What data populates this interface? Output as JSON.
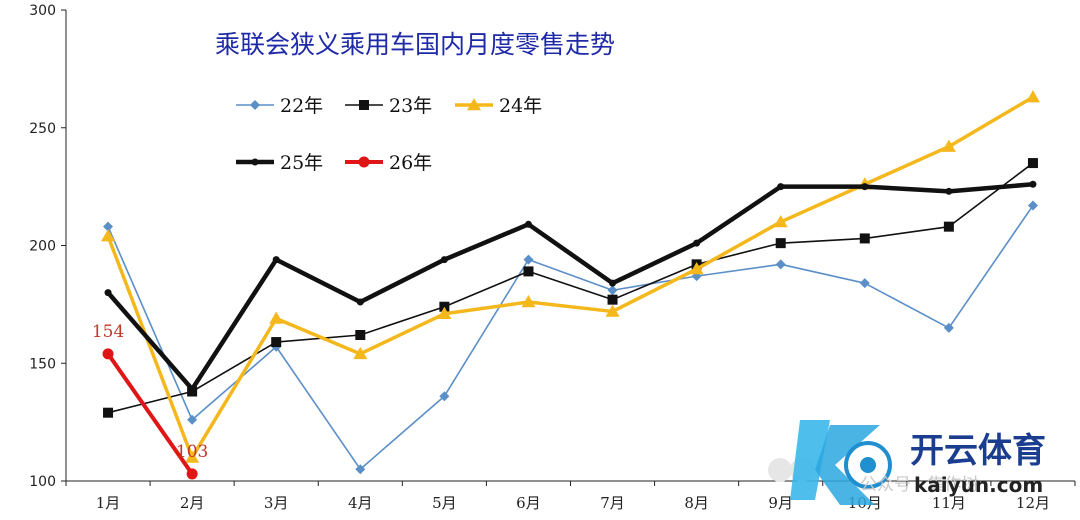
{
  "chart_data": {
    "type": "line",
    "title": "乘联会狭义乘用车国内月度零售走势",
    "xlabel": "",
    "ylabel": "",
    "categories": [
      "1月",
      "2月",
      "3月",
      "4月",
      "5月",
      "6月",
      "7月",
      "8月",
      "9月",
      "10月",
      "11月",
      "12月"
    ],
    "ylim": [
      100,
      300
    ],
    "yticks": [
      100,
      150,
      200,
      250,
      300
    ],
    "grid": false,
    "legend_position": "top-left",
    "series": [
      {
        "name": "22年",
        "color": "#5b8fc7",
        "marker": "diamond",
        "width": 1.6,
        "values": [
          208,
          126,
          157,
          105,
          136,
          194,
          181,
          187,
          192,
          184,
          165,
          217
        ]
      },
      {
        "name": "23年",
        "color": "#111111",
        "marker": "square",
        "width": 1.6,
        "values": [
          129,
          138,
          159,
          162,
          174,
          189,
          177,
          192,
          201,
          203,
          208,
          235
        ]
      },
      {
        "name": "24年",
        "color": "#f5b81c",
        "marker": "triangle",
        "width": 3.5,
        "values": [
          204,
          110,
          169,
          154,
          171,
          176,
          172,
          190,
          210,
          226,
          242,
          263
        ]
      },
      {
        "name": "25年",
        "color": "#111111",
        "marker": "dot",
        "width": 4.5,
        "values": [
          180,
          139,
          194,
          176,
          194,
          209,
          184,
          201,
          225,
          225,
          223,
          226
        ]
      },
      {
        "name": "26年",
        "color": "#e01515",
        "marker": "circle",
        "width": 4,
        "values": [
          154,
          103,
          null,
          null,
          null,
          null,
          null,
          null,
          null,
          null,
          null,
          null
        ]
      }
    ],
    "data_labels": [
      {
        "series": "26年",
        "category": "1月",
        "text": "154"
      },
      {
        "series": "26年",
        "category": "2月",
        "text": "103"
      }
    ]
  },
  "watermark": {
    "logo_letter": "K",
    "name_cn": "开云体育",
    "name_en": "kaiyun.com",
    "faded": "公众号 · 集作树"
  }
}
